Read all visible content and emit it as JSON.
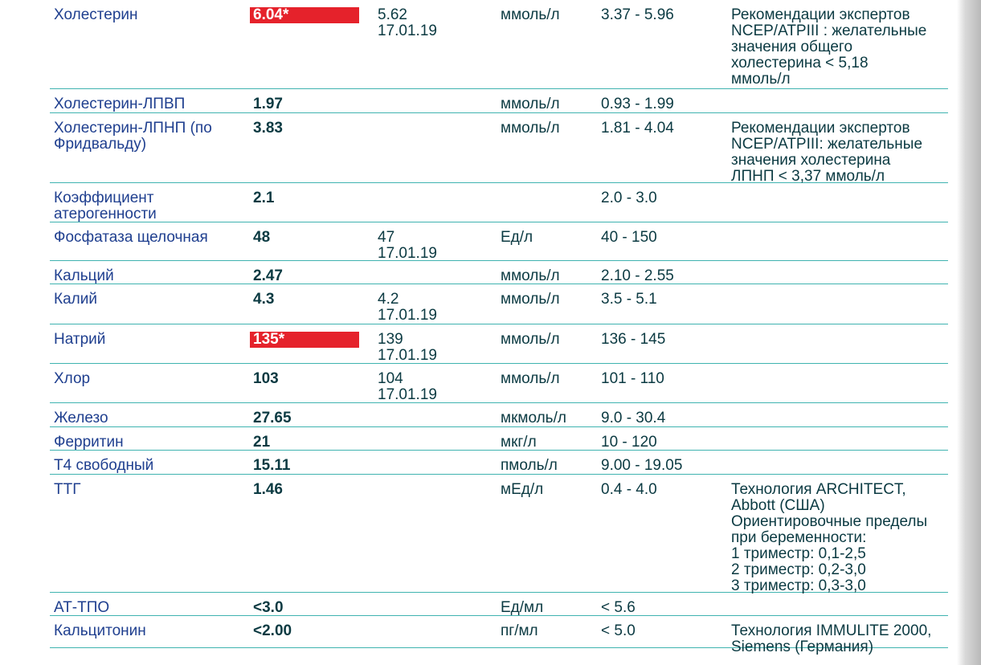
{
  "rows": [
    {
      "name": "Холестерин",
      "value": "6.04*",
      "flag": true,
      "prev": "5.62",
      "prev_date": "17.01.19",
      "unit": "ммоль/л",
      "ref": "3.37 - 5.96",
      "note": [
        "Рекомендации экспертов",
        "NCEP/ATPIII : желательные",
        "значения общего",
        "холестерина < 5,18",
        "ммоль/л"
      ]
    },
    {
      "name": "Холестерин-ЛПВП",
      "value": "1.97",
      "flag": false,
      "prev": "",
      "prev_date": "",
      "unit": "ммоль/л",
      "ref": "0.93 - 1.99",
      "note": []
    },
    {
      "name": "Холестерин-ЛПНП (по Фридвальду)",
      "value": "3.83",
      "flag": false,
      "prev": "",
      "prev_date": "",
      "unit": "ммоль/л",
      "ref": "1.81 - 4.04",
      "note": [
        "Рекомендации экспертов",
        "NCEP/ATPIII: желательные",
        "значения холестерина",
        "ЛПНП < 3,37 ммоль/л"
      ]
    },
    {
      "name": "Коэффициент атерогенности",
      "value": "2.1",
      "flag": false,
      "prev": "",
      "prev_date": "",
      "unit": "",
      "ref": "2.0 - 3.0",
      "note": []
    },
    {
      "name": "Фосфатаза щелочная",
      "value": "48",
      "flag": false,
      "prev": "47",
      "prev_date": "17.01.19",
      "unit": "Ед/л",
      "ref": "40 - 150",
      "note": []
    },
    {
      "name": "Кальций",
      "value": "2.47",
      "flag": false,
      "prev": "",
      "prev_date": "",
      "unit": "ммоль/л",
      "ref": "2.10 - 2.55",
      "note": []
    },
    {
      "name": "Калий",
      "value": "4.3",
      "flag": false,
      "prev": "4.2",
      "prev_date": "17.01.19",
      "unit": "ммоль/л",
      "ref": "3.5 - 5.1",
      "note": []
    },
    {
      "name": "Натрий",
      "value": "135*",
      "flag": true,
      "prev": "139",
      "prev_date": "17.01.19",
      "unit": "ммоль/л",
      "ref": "136 - 145",
      "note": []
    },
    {
      "name": "Хлор",
      "value": "103",
      "flag": false,
      "prev": "104",
      "prev_date": "17.01.19",
      "unit": "ммоль/л",
      "ref": "101 - 110",
      "note": []
    },
    {
      "name": "Железо",
      "value": "27.65",
      "flag": false,
      "prev": "",
      "prev_date": "",
      "unit": "мкмоль/л",
      "ref": "9.0 - 30.4",
      "note": []
    },
    {
      "name": "Ферритин",
      "value": "21",
      "flag": false,
      "prev": "",
      "prev_date": "",
      "unit": "мкг/л",
      "ref": "10 - 120",
      "note": []
    },
    {
      "name": "Т4 свободный",
      "value": "15.11",
      "flag": false,
      "prev": "",
      "prev_date": "",
      "unit": "пмоль/л",
      "ref": "9.00 - 19.05",
      "note": []
    },
    {
      "name": "ТТГ",
      "value": "1.46",
      "flag": false,
      "prev": "",
      "prev_date": "",
      "unit": "мЕд/л",
      "ref": "0.4 - 4.0",
      "note": [
        "Технология ARCHITECT,",
        "Abbott (США)",
        "Ориентировочные пределы",
        "при беременности:",
        "1 триместр: 0,1-2,5",
        "2 триместр: 0,2-3,0",
        "3 триместр: 0,3-3,0"
      ]
    },
    {
      "name": "АТ-ТПО",
      "value": "<3.0",
      "flag": false,
      "prev": "",
      "prev_date": "",
      "unit": "Ед/мл",
      "ref": "< 5.6",
      "note": []
    },
    {
      "name": "Кальцитонин",
      "value": "<2.00",
      "flag": false,
      "prev": "",
      "prev_date": "",
      "unit": "пг/мл",
      "ref": "< 5.0",
      "note": [
        "Технология IMMULITE 2000,",
        "Siemens (Германия)"
      ]
    }
  ]
}
